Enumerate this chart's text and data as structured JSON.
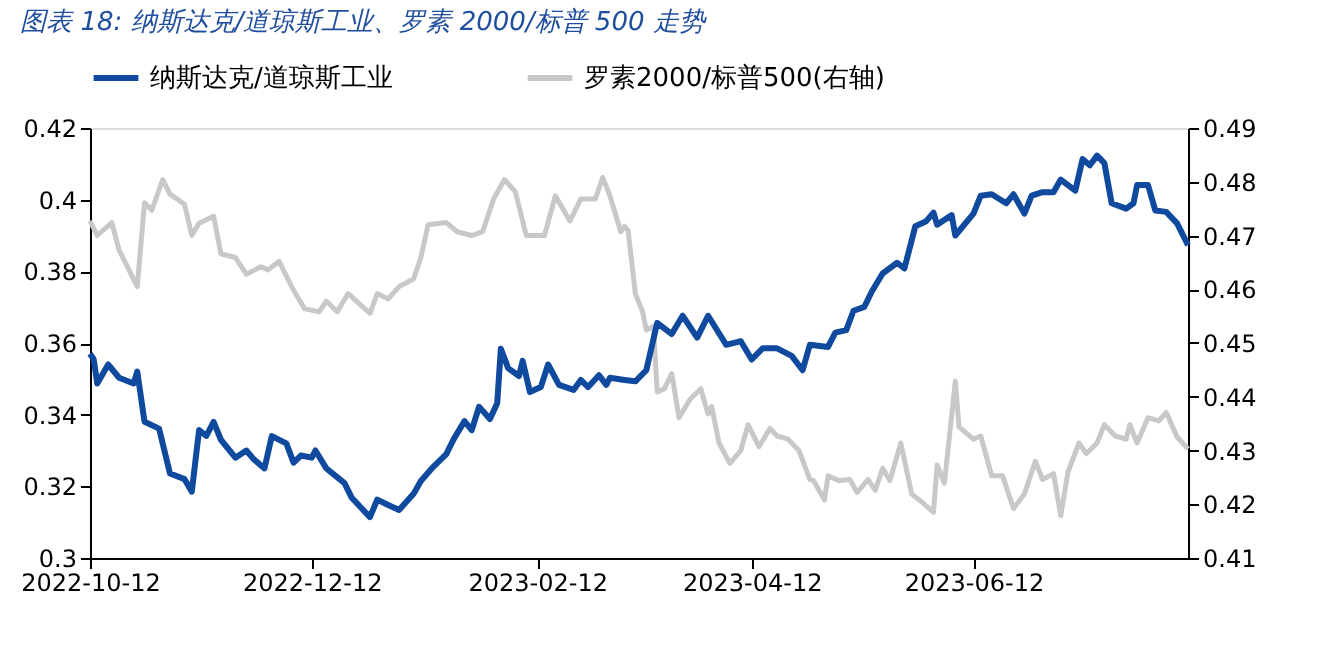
{
  "chart_data": {
    "type": "line",
    "title": "图表 18:  纳斯达克/道琼斯工业、罗素 2000/标普 500 走势",
    "xlim": [
      "2022-10-12",
      "2023-08-10"
    ],
    "xticks": [
      "2022-10-12",
      "2022-12-12",
      "2023-02-12",
      "2023-04-12",
      "2023-06-12"
    ],
    "ylim": [
      0.3,
      0.42
    ],
    "yticks": [
      0.3,
      0.32,
      0.34,
      0.36,
      0.38,
      0.4,
      0.42
    ],
    "y2lim": [
      0.41,
      0.49
    ],
    "y2ticks": [
      0.41,
      0.42,
      0.43,
      0.44,
      0.45,
      0.46,
      0.47,
      0.48,
      0.49
    ],
    "grid": false,
    "legend": "top",
    "marker": "none",
    "line_style": "solid",
    "series": [
      {
        "name": "纳斯达克/道琼斯工业",
        "color": "#0f4a9e",
        "axis": "y",
        "x": [
          "2022-10-12",
          "2022-10-13",
          "2022-10-14",
          "2022-10-17",
          "2022-10-20",
          "2022-10-24",
          "2022-10-25",
          "2022-10-27",
          "2022-10-31",
          "2022-11-03",
          "2022-11-07",
          "2022-11-09",
          "2022-11-11",
          "2022-11-13",
          "2022-11-15",
          "2022-11-17",
          "2022-11-21",
          "2022-11-24",
          "2022-11-26",
          "2022-11-29",
          "2022-12-01",
          "2022-12-05",
          "2022-12-07",
          "2022-12-09",
          "2022-12-12",
          "2022-12-13",
          "2022-12-16",
          "2022-12-21",
          "2022-12-23",
          "2022-12-28",
          "2022-12-30",
          "2023-01-02",
          "2023-01-05",
          "2023-01-09",
          "2023-01-11",
          "2023-01-14",
          "2023-01-18",
          "2023-01-20",
          "2023-01-23",
          "2023-01-25",
          "2023-01-27",
          "2023-01-30",
          "2023-02-01",
          "2023-02-02",
          "2023-02-04",
          "2023-02-07",
          "2023-02-08",
          "2023-02-10",
          "2023-02-13",
          "2023-02-15",
          "2023-02-18",
          "2023-02-22",
          "2023-02-24",
          "2023-02-26",
          "2023-03-01",
          "2023-03-03",
          "2023-03-04",
          "2023-03-08",
          "2023-03-11",
          "2023-03-14",
          "2023-03-17",
          "2023-03-21",
          "2023-03-24",
          "2023-03-28",
          "2023-03-31",
          "2023-04-05",
          "2023-04-09",
          "2023-04-12",
          "2023-04-15",
          "2023-04-19",
          "2023-04-23",
          "2023-04-26",
          "2023-04-28",
          "2023-05-03",
          "2023-05-05",
          "2023-05-08",
          "2023-05-10",
          "2023-05-13",
          "2023-05-15",
          "2023-05-18",
          "2023-05-22",
          "2023-05-24",
          "2023-05-27",
          "2023-05-30",
          "2023-06-01",
          "2023-06-02",
          "2023-06-06",
          "2023-06-07",
          "2023-06-12",
          "2023-06-14",
          "2023-06-17",
          "2023-06-21",
          "2023-06-23",
          "2023-06-26",
          "2023-06-28",
          "2023-07-01",
          "2023-07-04",
          "2023-07-06",
          "2023-07-10",
          "2023-07-12",
          "2023-07-14",
          "2023-07-16",
          "2023-07-18",
          "2023-07-20",
          "2023-07-24",
          "2023-07-26",
          "2023-07-27",
          "2023-07-30",
          "2023-08-01",
          "2023-08-04",
          "2023-08-07",
          "2023-08-10"
        ],
        "values": [
          0.357,
          0.3555,
          0.3487,
          0.354,
          0.3503,
          0.3487,
          0.352,
          0.338,
          0.3361,
          0.3236,
          0.322,
          0.3185,
          0.3357,
          0.3341,
          0.338,
          0.333,
          0.328,
          0.33,
          0.3276,
          0.325,
          0.334,
          0.332,
          0.3266,
          0.3286,
          0.328,
          0.33,
          0.325,
          0.3209,
          0.3168,
          0.3114,
          0.3163,
          0.3148,
          0.3134,
          0.3179,
          0.3215,
          0.325,
          0.329,
          0.3331,
          0.3382,
          0.3357,
          0.3422,
          0.3388,
          0.3432,
          0.3584,
          0.353,
          0.3508,
          0.355,
          0.3463,
          0.3477,
          0.354,
          0.3483,
          0.3469,
          0.3497,
          0.3477,
          0.351,
          0.3483,
          0.3503,
          0.3497,
          0.3493,
          0.3524,
          0.3656,
          0.3625,
          0.3676,
          0.3615,
          0.3676,
          0.3595,
          0.3605,
          0.3554,
          0.3585,
          0.3585,
          0.3564,
          0.3524,
          0.3595,
          0.3589,
          0.3629,
          0.3636,
          0.369,
          0.3701,
          0.3743,
          0.3794,
          0.3824,
          0.3808,
          0.3926,
          0.394,
          0.3964,
          0.393,
          0.3957,
          0.39,
          0.3961,
          0.4011,
          0.4015,
          0.399,
          0.4015,
          0.3961,
          0.4011,
          0.4021,
          0.4021,
          0.4056,
          0.4025,
          0.4113,
          0.4096,
          0.4123,
          0.4102,
          0.399,
          0.3975,
          0.399,
          0.4041,
          0.4041,
          0.397,
          0.3966,
          0.3934,
          0.3873
        ]
      },
      {
        "name": "罗素2000/标普500(右轴)",
        "color": "#c8c8c8",
        "axis": "y2",
        "x": [
          "2022-10-12",
          "2022-10-14",
          "2022-10-18",
          "2022-10-20",
          "2022-10-25",
          "2022-10-27",
          "2022-10-29",
          "2022-11-01",
          "2022-11-03",
          "2022-11-07",
          "2022-11-09",
          "2022-11-11",
          "2022-11-15",
          "2022-11-17",
          "2022-11-21",
          "2022-11-24",
          "2022-11-28",
          "2022-11-30",
          "2022-12-03",
          "2022-12-07",
          "2022-12-10",
          "2022-12-14",
          "2022-12-16",
          "2022-12-19",
          "2022-12-22",
          "2022-12-28",
          "2022-12-30",
          "2023-01-02",
          "2023-01-05",
          "2023-01-09",
          "2023-01-11",
          "2023-01-13",
          "2023-01-18",
          "2023-01-21",
          "2023-01-25",
          "2023-01-28",
          "2023-01-31",
          "2023-02-03",
          "2023-02-06",
          "2023-02-09",
          "2023-02-14",
          "2023-02-17",
          "2023-02-21",
          "2023-02-24",
          "2023-02-28",
          "2023-03-02",
          "2023-03-04",
          "2023-03-07",
          "2023-03-08",
          "2023-03-09",
          "2023-03-11",
          "2023-03-13",
          "2023-03-14",
          "2023-03-16",
          "2023-03-17",
          "2023-03-19",
          "2023-03-21",
          "2023-03-23",
          "2023-03-26",
          "2023-03-29",
          "2023-03-31",
          "2023-04-01",
          "2023-04-03",
          "2023-04-06",
          "2023-04-09",
          "2023-04-11",
          "2023-04-14",
          "2023-04-17",
          "2023-04-19",
          "2023-04-22",
          "2023-04-25",
          "2023-04-28",
          "2023-04-29",
          "2023-05-02",
          "2023-05-03",
          "2023-05-06",
          "2023-05-09",
          "2023-05-11",
          "2023-05-14",
          "2023-05-16",
          "2023-05-18",
          "2023-05-20",
          "2023-05-23",
          "2023-05-26",
          "2023-05-29",
          "2023-06-01",
          "2023-06-02",
          "2023-06-04",
          "2023-06-07",
          "2023-06-08",
          "2023-06-12",
          "2023-06-14",
          "2023-06-17",
          "2023-06-20",
          "2023-06-23",
          "2023-06-26",
          "2023-06-29",
          "2023-07-01",
          "2023-07-04",
          "2023-07-06",
          "2023-07-08",
          "2023-07-11",
          "2023-07-13",
          "2023-07-16",
          "2023-07-18",
          "2023-07-21",
          "2023-07-24",
          "2023-07-25",
          "2023-07-27",
          "2023-07-30",
          "2023-08-02",
          "2023-08-04",
          "2023-08-07",
          "2023-08-10"
        ],
        "values": [
          0.4727,
          0.47,
          0.4724,
          0.4673,
          0.4605,
          0.4761,
          0.4747,
          0.4804,
          0.4777,
          0.4758,
          0.47,
          0.4723,
          0.4736,
          0.4666,
          0.4659,
          0.4628,
          0.4642,
          0.4636,
          0.4652,
          0.4598,
          0.4564,
          0.4558,
          0.4578,
          0.4558,
          0.4592,
          0.4555,
          0.4592,
          0.4582,
          0.4605,
          0.4619,
          0.4659,
          0.472,
          0.4724,
          0.4707,
          0.47,
          0.4707,
          0.4768,
          0.4804,
          0.4781,
          0.47,
          0.47,
          0.4774,
          0.4727,
          0.4768,
          0.4768,
          0.4808,
          0.4774,
          0.4707,
          0.4717,
          0.4709,
          0.4592,
          0.4558,
          0.4524,
          0.4531,
          0.4409,
          0.4415,
          0.4443,
          0.4361,
          0.4395,
          0.4415,
          0.4368,
          0.4382,
          0.4314,
          0.4276,
          0.43,
          0.4348,
          0.4307,
          0.4341,
          0.4327,
          0.4321,
          0.43,
          0.4246,
          0.4244,
          0.4208,
          0.4253,
          0.4244,
          0.4246,
          0.4222,
          0.4246,
          0.4226,
          0.4267,
          0.4244,
          0.4314,
          0.4219,
          0.4203,
          0.4185,
          0.4273,
          0.4239,
          0.4429,
          0.4344,
          0.4321,
          0.4327,
          0.4253,
          0.4253,
          0.4192,
          0.4219,
          0.428,
          0.4246,
          0.4257,
          0.4179,
          0.426,
          0.4314,
          0.4294,
          0.4314,
          0.4348,
          0.4327,
          0.4321,
          0.4348,
          0.4314,
          0.4361,
          0.4355,
          0.4371,
          0.4325,
          0.4303
        ]
      }
    ]
  }
}
